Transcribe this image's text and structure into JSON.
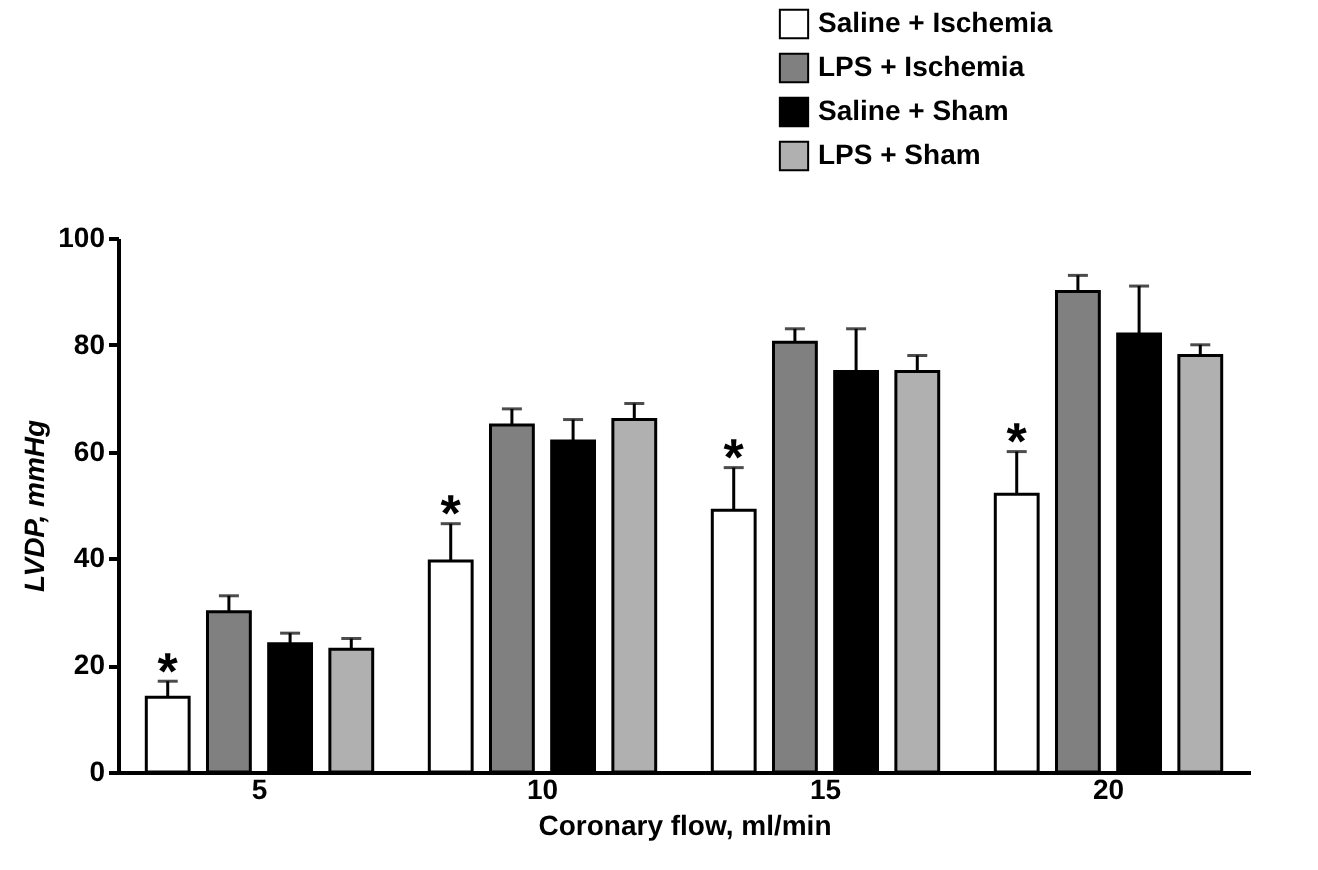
{
  "chart_data": {
    "type": "bar",
    "xlabel": "Coronary flow, ml/min",
    "ylabel": "LVDP, mmHg",
    "categories": [
      "5",
      "10",
      "15",
      "20"
    ],
    "series": [
      {
        "name": "Saline + Ischemia",
        "color": "#ffffff",
        "values": [
          14,
          39.5,
          49,
          52
        ],
        "errors": [
          [
            14,
            17
          ],
          [
            39.5,
            46.5
          ],
          [
            49,
            57
          ],
          [
            52,
            60
          ]
        ]
      },
      {
        "name": "LPS + Ischemia",
        "color": "#808080",
        "values": [
          30,
          65,
          80.5,
          90
        ],
        "errors": [
          [
            30,
            33
          ],
          [
            65,
            68
          ],
          [
            80.5,
            83
          ],
          [
            90,
            93
          ]
        ]
      },
      {
        "name": "Saline + Sham",
        "color": "#000000",
        "values": [
          24,
          62,
          75,
          82
        ],
        "errors": [
          [
            24,
            26
          ],
          [
            62,
            66
          ],
          [
            75,
            83
          ],
          [
            82,
            91
          ]
        ]
      },
      {
        "name": "LPS + Sham",
        "color": "#b0b0b0",
        "values": [
          23,
          66,
          75,
          78
        ],
        "errors": [
          [
            23,
            25
          ],
          [
            66,
            69
          ],
          [
            75,
            78
          ],
          [
            78,
            80
          ]
        ]
      }
    ],
    "annotations": [
      {
        "text": "*",
        "x": "5",
        "y": 19
      },
      {
        "text": "*",
        "x": "10",
        "y": 48.5
      },
      {
        "text": "*",
        "x": "15",
        "y": 59
      },
      {
        "text": "*",
        "x": "20",
        "y": 62
      }
    ],
    "ylim": [
      0,
      100
    ],
    "yticks": [
      0,
      20,
      40,
      60,
      80,
      100
    ],
    "grid": false,
    "legend": "top right"
  }
}
